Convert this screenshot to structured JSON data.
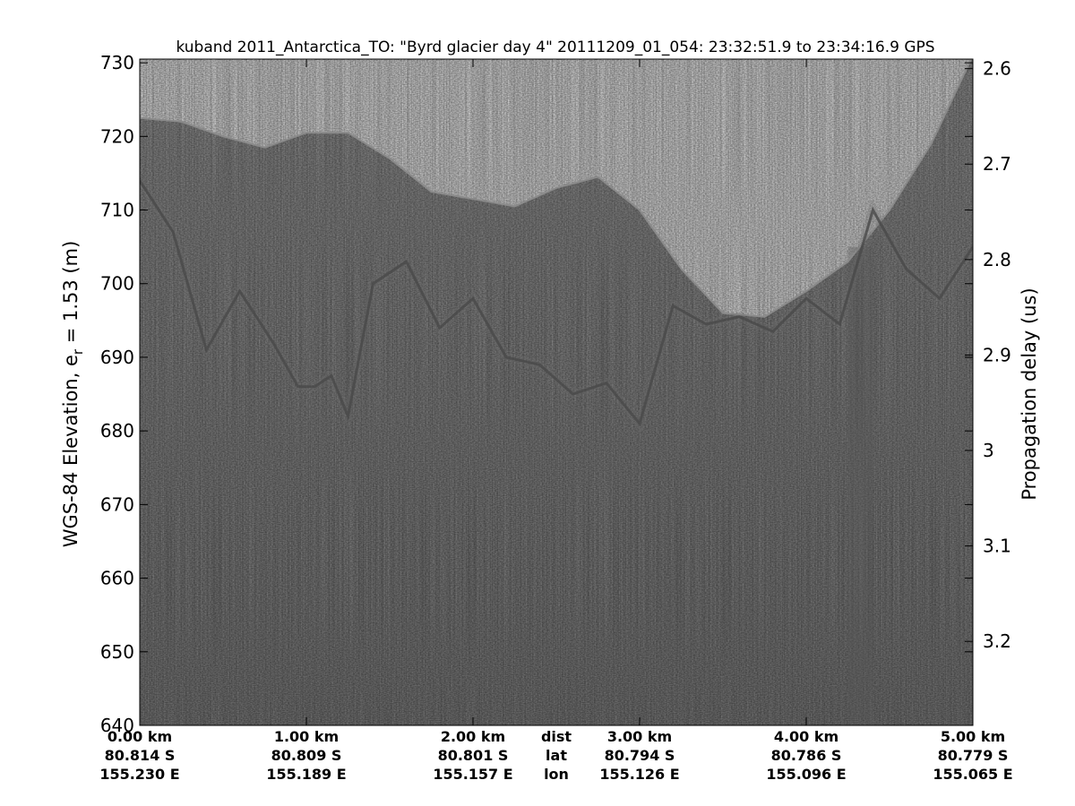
{
  "chart_data": {
    "type": "heatmap",
    "title": "kuband 2011_Antarctica_TO: \"Byrd glacier day 4\"  20111209_01_054: 23:32:51.9 to 23:34:16.9 GPS",
    "ylabel_left": "WGS-84 Elevation, e",
    "ylabel_left_sub": "r",
    "ylabel_left_suffix": " = 1.53 (m)",
    "ylabel_right": "Propagation delay (us)",
    "ylim_left": [
      640,
      730.5
    ],
    "yticks_left": [
      "640",
      "650",
      "660",
      "670",
      "680",
      "690",
      "700",
      "710",
      "720",
      "730"
    ],
    "yticks_left_values": [
      640,
      650,
      660,
      670,
      680,
      690,
      700,
      710,
      720,
      730
    ],
    "ylim_right": [
      3.288,
      2.59
    ],
    "yticks_right": [
      "2.6",
      "2.7",
      "2.8",
      "2.9",
      "3",
      "3.1",
      "3.2"
    ],
    "yticks_right_values": [
      2.6,
      2.7,
      2.8,
      2.9,
      3.0,
      3.1,
      3.2
    ],
    "xlim_km": [
      0,
      5.0
    ],
    "x_columns": [
      {
        "km": 0.0,
        "dist": "0.00 km",
        "lat": "80.814 S",
        "lon": "155.230 E"
      },
      {
        "km": 1.0,
        "dist": "1.00 km",
        "lat": "80.809 S",
        "lon": "155.189 E"
      },
      {
        "km": 2.0,
        "dist": "2.00 km",
        "lat": "80.801 S",
        "lon": "155.157 E"
      },
      {
        "km": 3.0,
        "dist": "3.00 km",
        "lat": "80.794 S",
        "lon": "155.126 E"
      },
      {
        "km": 4.0,
        "dist": "4.00 km",
        "lat": "80.786 S",
        "lon": "155.096 E"
      },
      {
        "km": 5.0,
        "dist": "5.00 km",
        "lat": "80.779 S",
        "lon": "155.065 E"
      }
    ],
    "row_labels": {
      "km": 2.5,
      "dist": "dist",
      "lat": "lat",
      "lon": "lon"
    },
    "surface_profile": {
      "x_km": [
        0.0,
        0.25,
        0.5,
        0.75,
        1.0,
        1.25,
        1.5,
        1.75,
        2.0,
        2.25,
        2.5,
        2.75,
        3.0,
        3.25,
        3.5,
        3.75,
        4.0,
        4.25,
        4.5,
        4.75,
        5.0
      ],
      "elevation_m": [
        722.5,
        722.0,
        720.0,
        718.5,
        720.5,
        720.5,
        717.0,
        712.5,
        711.5,
        710.5,
        713.0,
        714.5,
        710.0,
        702.0,
        696.0,
        695.5,
        699.0,
        703.0,
        710.0,
        719.0,
        731.0
      ]
    },
    "bed_profile": {
      "x_km": [
        0.0,
        0.2,
        0.4,
        0.6,
        0.8,
        0.95,
        1.05,
        1.15,
        1.25,
        1.4,
        1.6,
        1.8,
        2.0,
        2.2,
        2.4,
        2.6,
        2.8,
        3.0,
        3.2,
        3.4,
        3.6,
        3.8,
        4.0,
        4.2,
        4.4,
        4.6,
        4.8,
        5.0
      ],
      "elevation_m": [
        714.0,
        707.0,
        691.0,
        699.0,
        692.0,
        686.0,
        686.0,
        687.5,
        682.0,
        700.0,
        703.0,
        694.0,
        698.0,
        690.0,
        689.0,
        685.0,
        686.5,
        681.0,
        697.0,
        694.5,
        695.5,
        693.5,
        698.0,
        694.5,
        710.0,
        702.0,
        698.0,
        705.0
      ]
    },
    "colormap": "gray",
    "grid": false,
    "legend": "none"
  }
}
